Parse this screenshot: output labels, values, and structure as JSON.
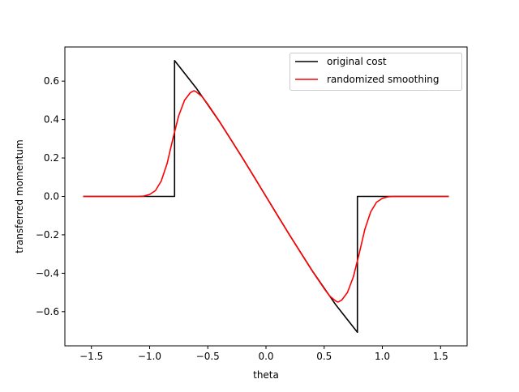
{
  "chart_data": {
    "type": "line",
    "title": "",
    "xlabel": "theta",
    "ylabel": "transferred momentum",
    "xlim": [
      -1.7279,
      1.7279
    ],
    "ylim": [
      -0.7778,
      0.7778
    ],
    "xticks": [
      -1.5,
      -1.0,
      -0.5,
      0.0,
      0.5,
      1.0,
      1.5
    ],
    "xtick_labels": [
      "−1.5",
      "−1.0",
      "−0.5",
      "0.0",
      "0.5",
      "1.0",
      "1.5"
    ],
    "yticks": [
      -0.6,
      -0.4,
      -0.2,
      0.0,
      0.2,
      0.4,
      0.6
    ],
    "ytick_labels": [
      "−0.6",
      "−0.4",
      "−0.2",
      "0.0",
      "0.2",
      "0.4",
      "0.6"
    ],
    "grid": false,
    "legend_position": "top-right",
    "series": [
      {
        "name": "original cost",
        "color": "#000000",
        "x": [
          -1.5708,
          -0.7854,
          -0.7854,
          -0.6,
          -0.4,
          -0.2,
          0.0,
          0.2,
          0.4,
          0.6,
          0.7854,
          0.7854,
          1.5708
        ],
        "y": [
          0.0,
          0.0,
          0.7071,
          0.5646,
          0.3894,
          0.1987,
          0.0,
          -0.1987,
          -0.3894,
          -0.5646,
          -0.7071,
          0.0,
          0.0
        ]
      },
      {
        "name": "randomized smoothing",
        "color": "#ff0000",
        "x": [
          -1.5708,
          -1.1,
          -1.05,
          -1.0,
          -0.95,
          -0.9,
          -0.85,
          -0.8,
          -0.75,
          -0.7,
          -0.65,
          -0.62,
          -0.6,
          -0.55,
          -0.5,
          -0.4,
          -0.3,
          -0.2,
          -0.1,
          0.0,
          0.1,
          0.2,
          0.3,
          0.4,
          0.5,
          0.55,
          0.6,
          0.62,
          0.65,
          0.7,
          0.75,
          0.8,
          0.85,
          0.9,
          0.95,
          1.0,
          1.05,
          1.1,
          1.5708
        ],
        "y": [
          0.0,
          0.0,
          0.002,
          0.01,
          0.03,
          0.08,
          0.17,
          0.3,
          0.42,
          0.5,
          0.54,
          0.55,
          0.545,
          0.52,
          0.48,
          0.39,
          0.295,
          0.198,
          0.1,
          0.0,
          -0.1,
          -0.198,
          -0.295,
          -0.39,
          -0.48,
          -0.52,
          -0.545,
          -0.55,
          -0.54,
          -0.5,
          -0.42,
          -0.3,
          -0.17,
          -0.08,
          -0.03,
          -0.01,
          -0.002,
          0.0,
          0.0
        ]
      }
    ]
  }
}
